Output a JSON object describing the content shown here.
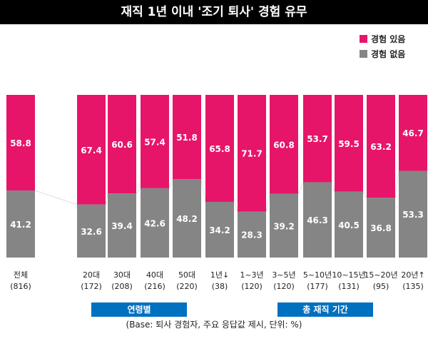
{
  "title": "재직 1년 이내 '조기 퇴사' 경험 유무",
  "footnote": "(Base: 퇴사 경험자, 주요 응답값 제시, 단위: %)",
  "group_labels": [
    "연령별",
    "총 재직 기간"
  ],
  "colors": {
    "experienced": "#e6156a",
    "not_experienced": "#858585",
    "badge": "#0070c0",
    "title_bg": "#000000"
  },
  "chart_data": {
    "type": "bar",
    "stacked": true,
    "normalized_to": 100,
    "legend_position": "top-right",
    "categories": [
      "전체",
      "20대",
      "30대",
      "40대",
      "50대",
      "1년↓",
      "1~3년",
      "3~5년",
      "5~10년",
      "10~15년",
      "15~20년",
      "20년↑"
    ],
    "bases": [
      "(816)",
      "(172)",
      "(208)",
      "(216)",
      "(220)",
      "(38)",
      "(120)",
      "(120)",
      "(177)",
      "(131)",
      "(95)",
      "(135)"
    ],
    "series": [
      {
        "name": "경험 있음",
        "values": [
          58.8,
          67.4,
          60.6,
          57.4,
          51.8,
          65.8,
          71.7,
          60.8,
          53.7,
          59.5,
          63.2,
          46.7
        ]
      },
      {
        "name": "경험 없음",
        "values": [
          41.2,
          32.6,
          39.4,
          42.6,
          48.2,
          34.2,
          28.3,
          39.2,
          46.3,
          40.5,
          36.8,
          53.3
        ]
      }
    ]
  }
}
